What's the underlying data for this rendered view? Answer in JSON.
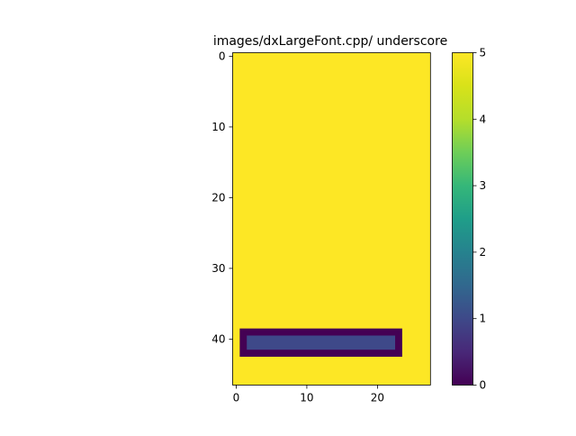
{
  "chart_data": {
    "type": "heatmap",
    "title": "images/dxLargeFont.cpp/ underscore",
    "xlabel": "",
    "ylabel": "",
    "rows": 47,
    "cols": 28,
    "background_value": 5,
    "cells": [
      {
        "rows": [
          39,
          42
        ],
        "cols": [
          1,
          23
        ],
        "value": 0
      },
      {
        "rows": [
          40,
          41
        ],
        "cols": [
          2,
          22
        ],
        "value": 1
      }
    ],
    "xticks": [
      0,
      10,
      20
    ],
    "yticks": [
      0,
      10,
      20,
      30,
      40
    ],
    "colorbar": {
      "colormap": "viridis",
      "range": [
        0,
        5
      ],
      "ticks": [
        0,
        1,
        2,
        3,
        4,
        5
      ]
    },
    "grid": false
  }
}
